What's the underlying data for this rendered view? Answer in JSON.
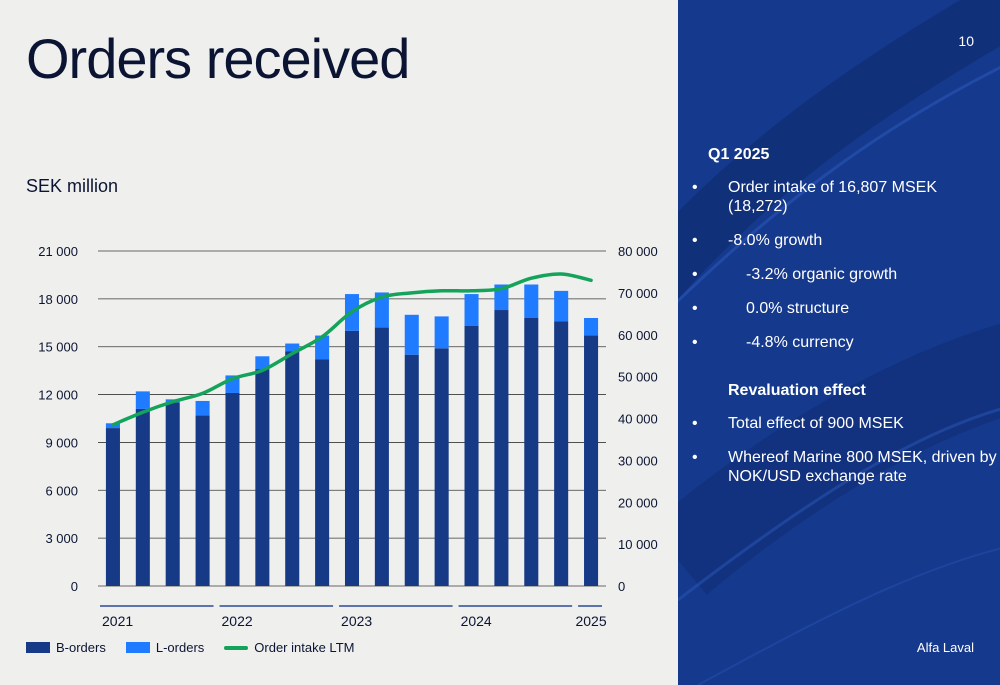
{
  "page": {
    "title": "Orders received",
    "unit_label": "SEK million",
    "page_number": "10",
    "brand": "Alfa Laval"
  },
  "legend": {
    "items": [
      {
        "label": "B-orders",
        "color": "#173a87",
        "kind": "bar"
      },
      {
        "label": "L-orders",
        "color": "#1f7bff",
        "kind": "bar"
      },
      {
        "label": "Order intake LTM",
        "color": "#13a35a",
        "kind": "line"
      }
    ]
  },
  "sidebar": {
    "heading": "Q1 2025",
    "points": [
      {
        "text": "Order intake of 16,807 MSEK (18,272)",
        "level": 1
      },
      {
        "text": "-8.0% growth",
        "level": 1
      },
      {
        "text": "-3.2% organic growth",
        "level": 2
      },
      {
        "text": "0.0% structure",
        "level": 2
      },
      {
        "text": "-4.8% currency",
        "level": 2
      }
    ],
    "reval_heading": "Revaluation effect",
    "reval_points": [
      {
        "text": "Total effect of 900 MSEK"
      },
      {
        "text": "Whereof Marine 800 MSEK, driven by NOK/USD exchange rate"
      }
    ]
  },
  "colors": {
    "b_orders": "#173a87",
    "l_orders": "#1f7bff",
    "ltm": "#13a35a",
    "panel": "#15398c",
    "axis_text": "#0b1533",
    "gridline": "#3a3a3a",
    "year_line": "#2b4a9a"
  },
  "chart_data": {
    "type": "bar",
    "stacked": true,
    "title": "",
    "xlabel": "",
    "ylabel": "SEK million",
    "ylim": [
      0,
      21000
    ],
    "y_ticks": [
      "21 000",
      "18 000",
      "15 000",
      "12 000",
      "9 000",
      "6 000",
      "3 000",
      "0"
    ],
    "y_tick_values": [
      21000,
      18000,
      15000,
      12000,
      9000,
      6000,
      3000,
      0
    ],
    "y2lim": [
      0,
      80000
    ],
    "y2_ticks": [
      "80 000",
      "70 000",
      "60 000",
      "50 000",
      "40 000",
      "30 000",
      "20 000",
      "10 000",
      "0"
    ],
    "y2_tick_values": [
      80000,
      70000,
      60000,
      50000,
      40000,
      30000,
      20000,
      10000,
      0
    ],
    "grid": true,
    "legend_position": "bottom-left",
    "quarters": [
      "Q1 2021",
      "Q2 2021",
      "Q3 2021",
      "Q4 2021",
      "Q1 2022",
      "Q2 2022",
      "Q3 2022",
      "Q4 2022",
      "Q1 2023",
      "Q2 2023",
      "Q3 2023",
      "Q4 2023",
      "Q1 2024",
      "Q2 2024",
      "Q3 2024",
      "Q4 2024",
      "Q1 2025"
    ],
    "year_groups": [
      {
        "label": "2021",
        "start": 0,
        "end": 3
      },
      {
        "label": "2022",
        "start": 4,
        "end": 7
      },
      {
        "label": "2023",
        "start": 8,
        "end": 11
      },
      {
        "label": "2024",
        "start": 12,
        "end": 15
      },
      {
        "label": "2025",
        "start": 16,
        "end": 16
      }
    ],
    "series": [
      {
        "name": "B-orders",
        "axis": "left",
        "values": [
          9900,
          11100,
          11500,
          10700,
          12100,
          13600,
          14700,
          14200,
          16000,
          16200,
          14500,
          14900,
          16300,
          17300,
          16800,
          16600,
          15700
        ]
      },
      {
        "name": "L-orders",
        "axis": "left",
        "values": [
          300,
          1100,
          200,
          900,
          1100,
          800,
          500,
          1500,
          2300,
          2200,
          2500,
          2000,
          2000,
          1600,
          2100,
          1900,
          1100
        ]
      },
      {
        "name": "Order intake LTM",
        "axis": "right",
        "type": "line",
        "values": [
          38500,
          41500,
          44000,
          46000,
          49500,
          51500,
          55500,
          59500,
          65500,
          69000,
          70000,
          70500,
          70500,
          71000,
          73500,
          74500,
          73000
        ]
      }
    ]
  }
}
